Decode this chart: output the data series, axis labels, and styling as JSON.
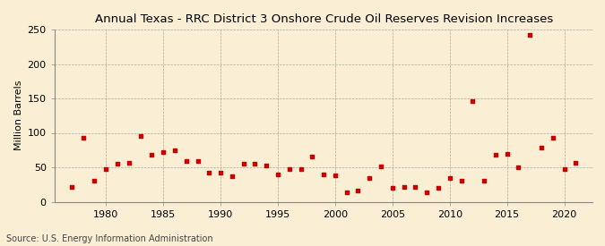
{
  "title": "Annual Texas - RRC District 3 Onshore Crude Oil Reserves Revision Increases",
  "ylabel": "Million Barrels",
  "source": "Source: U.S. Energy Information Administration",
  "background_color": "#faefd4",
  "marker_color": "#cc0000",
  "years": [
    1977,
    1978,
    1979,
    1980,
    1981,
    1982,
    1983,
    1984,
    1985,
    1986,
    1987,
    1988,
    1989,
    1990,
    1991,
    1992,
    1993,
    1994,
    1995,
    1996,
    1997,
    1998,
    1999,
    2000,
    2001,
    2002,
    2003,
    2004,
    2005,
    2006,
    2007,
    2008,
    2009,
    2010,
    2011,
    2012,
    2013,
    2014,
    2015,
    2016,
    2017,
    2018,
    2019,
    2020,
    2021
  ],
  "values": [
    22,
    93,
    30,
    47,
    55,
    57,
    95,
    68,
    72,
    75,
    59,
    59,
    42,
    42,
    37,
    55,
    55,
    53,
    40,
    48,
    48,
    65,
    40,
    38,
    14,
    16,
    35,
    51,
    20,
    21,
    21,
    13,
    20,
    35,
    30,
    146,
    30,
    68,
    70,
    50,
    242,
    78,
    93,
    47,
    57
  ],
  "xlim": [
    1975.5,
    2022.5
  ],
  "ylim": [
    0,
    250
  ],
  "yticks": [
    0,
    50,
    100,
    150,
    200,
    250
  ],
  "xticks": [
    1980,
    1985,
    1990,
    1995,
    2000,
    2005,
    2010,
    2015,
    2020
  ],
  "grid_color": "#aaaaaa",
  "title_fontsize": 9.5,
  "label_fontsize": 8,
  "tick_fontsize": 8,
  "source_fontsize": 7
}
